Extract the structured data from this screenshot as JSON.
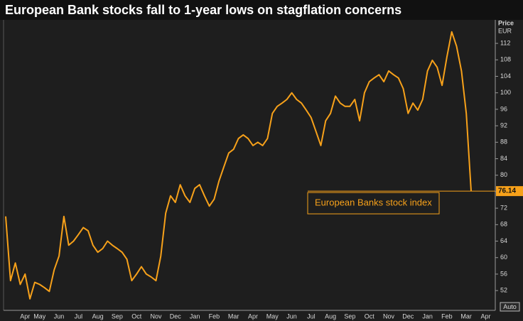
{
  "chart_data": {
    "type": "line",
    "title": "European Bank stocks fall to 1-year lows on stagflation concerns",
    "y_label": "Price",
    "y_unit": "EUR",
    "button": "Auto",
    "categories": [
      null,
      null,
      null,
      null,
      "Apr",
      null,
      null,
      "May",
      null,
      null,
      null,
      "Jun",
      null,
      null,
      null,
      "Jul",
      null,
      null,
      null,
      "Aug",
      null,
      null,
      null,
      "Sep",
      null,
      null,
      null,
      "Oct",
      null,
      null,
      null,
      "Nov",
      null,
      null,
      null,
      "Dec",
      null,
      null,
      null,
      "Jan",
      null,
      null,
      null,
      "Feb",
      null,
      null,
      null,
      "Mar",
      null,
      null,
      null,
      "Apr",
      null,
      null,
      null,
      "May",
      null,
      null,
      null,
      "Jun",
      null,
      null,
      null,
      "Jul",
      null,
      null,
      null,
      "Aug",
      null,
      null,
      null,
      "Sep",
      null,
      null,
      null,
      "Oct",
      null,
      null,
      null,
      "Nov",
      null,
      null,
      null,
      "Dec",
      null,
      null,
      null,
      "Jan",
      null,
      null,
      null,
      "Feb",
      null,
      null,
      null,
      "Mar",
      null,
      null,
      null,
      "Apr"
    ],
    "series": [
      {
        "name": "European Banks stock index",
        "color": "#f7a11a",
        "values": [
          70,
          54.4,
          58.7,
          53.5,
          56,
          50,
          54,
          53.5,
          52.7,
          51.8,
          57,
          60.4,
          70,
          63,
          64,
          65.6,
          67.3,
          66.5,
          63,
          61.3,
          62.2,
          64,
          63,
          62.2,
          61.3,
          59.6,
          54.4,
          56,
          57.8,
          56,
          55.3,
          54.4,
          60.4,
          70.8,
          75,
          73.4,
          77.7,
          75,
          73.4,
          76.8,
          77.7,
          75,
          72.5,
          74.2,
          78.6,
          82,
          85.4,
          86.3,
          88.9,
          89.8,
          88.9,
          87.2,
          88,
          87.2,
          88.9,
          95,
          96.7,
          97.5,
          98.4,
          100,
          98.4,
          97.5,
          95.8,
          94,
          90.6,
          87.2,
          93.2,
          95,
          99.2,
          97.5,
          96.7,
          96.7,
          98.4,
          93.2,
          100,
          102.7,
          103.6,
          104.4,
          102.7,
          105.3,
          104.4,
          103.6,
          101,
          95,
          97.5,
          95.8,
          98.4,
          105.3,
          107.9,
          106.2,
          101.8,
          108.7,
          114.8,
          111.3,
          105.3,
          95,
          76.14,
          null,
          null,
          null
        ]
      }
    ],
    "ylim": [
      47.2,
      117.7
    ],
    "yticks": [
      52,
      56,
      60,
      64,
      68,
      72,
      76,
      80,
      84,
      88,
      92,
      96,
      100,
      104,
      108,
      112
    ],
    "grid": false
  }
}
